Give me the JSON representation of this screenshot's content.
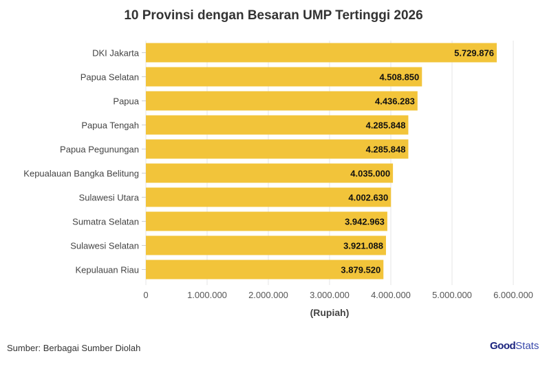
{
  "title": "10 Provinsi dengan Besaran UMP Tertinggi 2026",
  "source": "Sumber: Berbagai Sumber Diolah",
  "logo": {
    "bold": "Good",
    "light": "Stats"
  },
  "chart_data": {
    "type": "bar",
    "orientation": "horizontal",
    "title": "10 Provinsi dengan Besaran UMP Tertinggi 2026",
    "xlabel": "(Rupiah)",
    "ylabel": "",
    "xlim": [
      0,
      6000000
    ],
    "xticks": [
      0,
      1000000,
      2000000,
      3000000,
      4000000,
      5000000,
      6000000
    ],
    "xtick_labels": [
      "0",
      "1.000.000",
      "2.000.000",
      "3.000.000",
      "4.000.000",
      "5.000.000",
      "6.000.000"
    ],
    "grid": true,
    "bar_color": "#f2c43a",
    "categories": [
      "DKI Jakarta",
      "Papua Selatan",
      "Papua",
      "Papua Tengah",
      "Papua Pegunungan",
      "Kepualauan Bangka Belitung",
      "Sulawesi Utara",
      "Sumatra Selatan",
      "Sulawesi Selatan",
      "Kepulauan Riau"
    ],
    "values": [
      5729876,
      4508850,
      4436283,
      4285848,
      4285848,
      4035000,
      4002630,
      3942963,
      3921088,
      3879520
    ],
    "data_labels": [
      "5.729.876",
      "4.508.850",
      "4.436.283",
      "4.285.848",
      "4.285.848",
      "4.035.000",
      "4.002.630",
      "3.942.963",
      "3.921.088",
      "3.879.520"
    ]
  }
}
